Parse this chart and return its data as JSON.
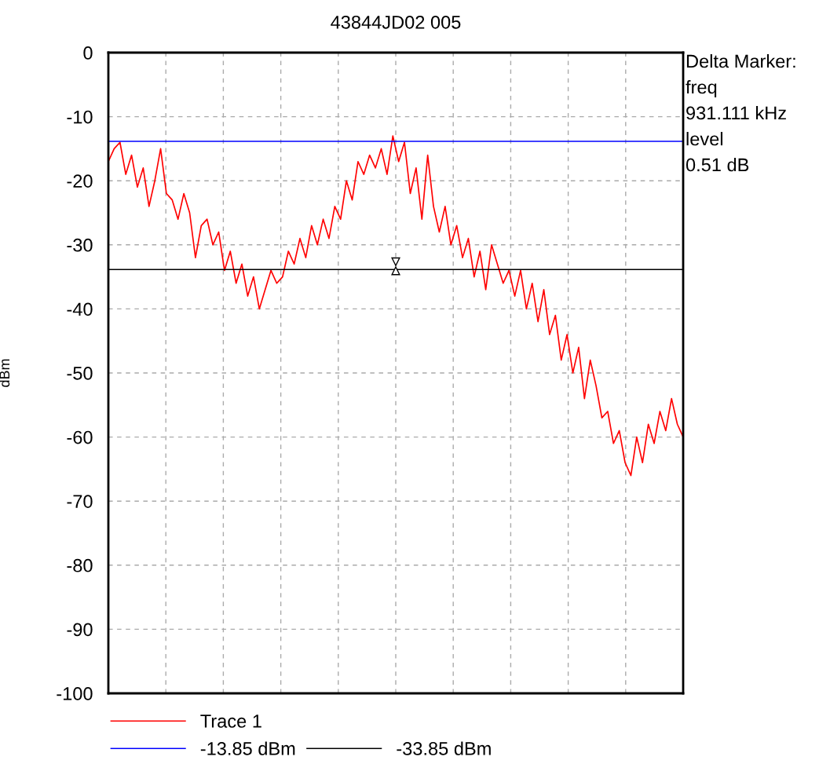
{
  "chart_data": {
    "type": "line",
    "title": "43844JD02 005",
    "ylabel": "dBm",
    "categories": [
      null,
      null,
      null,
      null,
      null,
      null,
      null,
      null,
      null,
      null,
      null,
      null,
      null,
      null,
      null,
      null,
      null,
      null,
      null,
      null,
      null,
      null,
      null,
      null,
      null,
      null,
      null,
      null,
      null,
      null,
      null,
      null,
      null,
      null,
      null,
      null,
      null,
      null,
      null,
      null,
      null,
      null,
      null,
      null,
      null,
      null,
      null,
      null,
      null,
      null,
      null,
      null,
      null,
      null,
      null,
      null,
      null,
      null,
      null,
      null,
      null,
      null,
      null,
      null,
      null,
      null,
      null,
      null,
      null,
      null,
      null,
      null,
      null,
      null,
      null,
      null,
      null,
      null,
      null,
      null,
      null,
      null,
      null,
      null,
      null,
      null,
      null,
      null,
      null,
      null,
      null,
      null,
      null,
      null,
      null,
      null,
      null,
      null,
      null,
      null
    ],
    "series": [
      {
        "name": "Trace 1",
        "color": "#ff0000",
        "values": [
          -17,
          -15,
          -14,
          -19,
          -16,
          -21,
          -18,
          -24,
          -20,
          -15,
          -22,
          -23,
          -26,
          -22,
          -25,
          -32,
          -27,
          -26,
          -30,
          -28,
          -34,
          -31,
          -36,
          -33,
          -38,
          -35,
          -40,
          -37,
          -34,
          -36,
          -35,
          -31,
          -33,
          -29,
          -32,
          -27,
          -30,
          -26,
          -29,
          -24,
          -26,
          -20,
          -23,
          -17,
          -19,
          -16,
          -18,
          -15,
          -19,
          -13,
          -17,
          -14,
          -22,
          -18,
          -26,
          -16,
          -24,
          -28,
          -24,
          -30,
          -27,
          -32,
          -29,
          -35,
          -31,
          -37,
          -30,
          -33,
          -36,
          -34,
          -38,
          -34,
          -40,
          -36,
          -42,
          -37,
          -44,
          -41,
          -48,
          -44,
          -50,
          -46,
          -54,
          -48,
          -52,
          -57,
          -56,
          -61,
          -59,
          -64,
          -66,
          -60,
          -64,
          -58,
          -61,
          -56,
          -59,
          -54,
          -58,
          -60
        ]
      }
    ],
    "ylim": [
      -100,
      0
    ],
    "yticks": [
      -100,
      -90,
      -80,
      -70,
      -60,
      -50,
      -40,
      -30,
      -20,
      -10,
      0
    ],
    "tick_labels": "y",
    "grid": true,
    "legend": "bottom",
    "ref_lines": [
      {
        "axis": "y",
        "value": -13.85,
        "label": "-13.85 dBm",
        "color": "#0000ff"
      },
      {
        "axis": "y",
        "value": -33.85,
        "label": "-33.85 dBm",
        "color": "#000000"
      }
    ],
    "annotations": [
      "Delta Marker:",
      "freq",
      "931.111 kHz",
      "level",
      "0.51 dB"
    ]
  }
}
